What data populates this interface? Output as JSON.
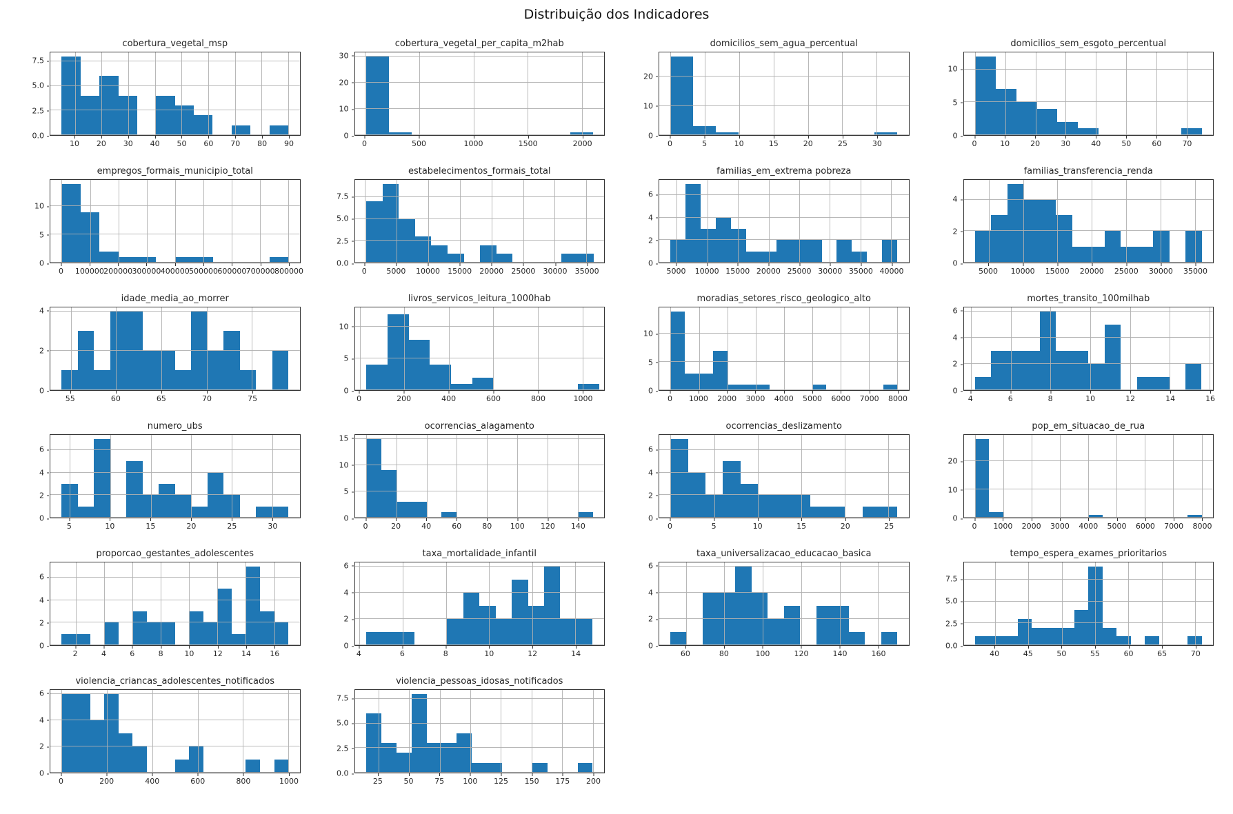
{
  "figure": {
    "title": "Distribuição dos Indicadores"
  },
  "colors": {
    "bar": "#1f77b4",
    "grid": "#b0b0b0",
    "spine": "#333333",
    "text": "#262626"
  },
  "chart_data": [
    {
      "type": "histogram",
      "title": "cobertura_vegetal_msp",
      "bin_start": 5,
      "bin_width": 7.08,
      "counts": [
        8,
        4,
        6,
        4,
        0,
        4,
        3,
        2,
        0,
        1,
        0,
        1
      ],
      "x_axis": {
        "min": 0.75,
        "max": 94.25,
        "tick_values": [
          10,
          20,
          30,
          40,
          50,
          60,
          70,
          80,
          90
        ],
        "tick_labels": [
          "10",
          "20",
          "30",
          "40",
          "50",
          "60",
          "70",
          "80",
          "90"
        ]
      },
      "y_axis": {
        "max": 8.4,
        "tick_values": [
          0,
          2.5,
          5,
          7.5
        ],
        "tick_labels": [
          "0.0",
          "2.5",
          "5.0",
          "7.5"
        ]
      }
    },
    {
      "type": "histogram",
      "title": "cobertura_vegetal_per_capita_m2hab",
      "bin_start": 10,
      "bin_width": 209,
      "counts": [
        30,
        1,
        0,
        0,
        0,
        0,
        0,
        0,
        0,
        1
      ],
      "x_axis": {
        "min": -94.5,
        "max": 2204.5,
        "tick_values": [
          0,
          500,
          1000,
          1500,
          2000
        ],
        "tick_labels": [
          "0",
          "500",
          "1000",
          "1500",
          "2000"
        ]
      },
      "y_axis": {
        "max": 31.5,
        "tick_values": [
          0,
          10,
          20,
          30
        ],
        "tick_labels": [
          "0",
          "10",
          "20",
          "30"
        ]
      }
    },
    {
      "type": "histogram",
      "title": "domicilios_sem_agua_percentual",
      "bin_start": 0,
      "bin_width": 3.3,
      "counts": [
        27,
        3,
        1,
        0,
        0,
        0,
        0,
        0,
        0,
        1
      ],
      "x_axis": {
        "min": -1.65,
        "max": 34.65,
        "tick_values": [
          0,
          5,
          10,
          15,
          20,
          25,
          30
        ],
        "tick_labels": [
          "0",
          "5",
          "10",
          "15",
          "20",
          "25",
          "30"
        ]
      },
      "y_axis": {
        "max": 28.35,
        "tick_values": [
          0,
          10,
          20
        ],
        "tick_labels": [
          "0",
          "10",
          "20"
        ]
      }
    },
    {
      "type": "histogram",
      "title": "domicilios_sem_esgoto_percentual",
      "bin_start": 0,
      "bin_width": 6.82,
      "counts": [
        12,
        7,
        5,
        4,
        2,
        1,
        0,
        0,
        0,
        0,
        1
      ],
      "x_axis": {
        "min": -3.75,
        "max": 78.75,
        "tick_values": [
          0,
          10,
          20,
          30,
          40,
          50,
          60,
          70
        ],
        "tick_labels": [
          "0",
          "10",
          "20",
          "30",
          "40",
          "50",
          "60",
          "70"
        ]
      },
      "y_axis": {
        "max": 12.6,
        "tick_values": [
          0,
          5,
          10
        ],
        "tick_labels": [
          "0",
          "5",
          "10"
        ]
      }
    },
    {
      "type": "histogram",
      "title": "empregos_formais_municipio_total",
      "bin_start": 0,
      "bin_width": 66667,
      "counts": [
        14,
        9,
        2,
        1,
        1,
        0,
        1,
        1,
        0,
        0,
        0,
        1
      ],
      "x_axis": {
        "min": -40000,
        "max": 840000,
        "tick_values": [
          0,
          100000,
          200000,
          300000,
          400000,
          500000,
          600000,
          700000,
          800000
        ],
        "tick_labels": [
          "0",
          "100000",
          "200000",
          "300000",
          "400000",
          "500000",
          "600000",
          "700000",
          "800000"
        ]
      },
      "y_axis": {
        "max": 14.7,
        "tick_values": [
          0,
          5,
          10
        ],
        "tick_labels": [
          "0",
          "5",
          "10"
        ]
      }
    },
    {
      "type": "histogram",
      "title": "estabelecimentos_formais_total",
      "bin_start": 200,
      "bin_width": 2571,
      "counts": [
        7,
        9,
        5,
        3,
        2,
        1,
        0,
        2,
        1,
        0,
        0,
        0,
        1,
        1
      ],
      "x_axis": {
        "min": -1600,
        "max": 37800,
        "tick_values": [
          0,
          5000,
          10000,
          15000,
          20000,
          25000,
          30000,
          35000
        ],
        "tick_labels": [
          "0",
          "5000",
          "10000",
          "15000",
          "20000",
          "25000",
          "30000",
          "35000"
        ]
      },
      "y_axis": {
        "max": 9.45,
        "tick_values": [
          0,
          2.5,
          5,
          7.5
        ],
        "tick_labels": [
          "0.0",
          "2.5",
          "5.0",
          "7.5"
        ]
      }
    },
    {
      "type": "histogram",
      "title": "familias_em_extrema pobreza",
      "bin_start": 4000,
      "bin_width": 2467,
      "counts": [
        2,
        7,
        3,
        4,
        3,
        1,
        1,
        2,
        2,
        2,
        0,
        2,
        1,
        0,
        2
      ],
      "x_axis": {
        "min": 2150,
        "max": 42850,
        "tick_values": [
          5000,
          10000,
          15000,
          20000,
          25000,
          30000,
          35000,
          40000
        ],
        "tick_labels": [
          "5000",
          "10000",
          "15000",
          "20000",
          "25000",
          "30000",
          "35000",
          "40000"
        ]
      },
      "y_axis": {
        "max": 7.35,
        "tick_values": [
          0,
          2,
          4,
          6
        ],
        "tick_labels": [
          "0",
          "2",
          "4",
          "6"
        ]
      }
    },
    {
      "type": "histogram",
      "title": "familias_transferencia_renda",
      "bin_start": 3000,
      "bin_width": 2357,
      "counts": [
        2,
        3,
        5,
        4,
        4,
        3,
        1,
        1,
        2,
        1,
        1,
        2,
        0,
        2
      ],
      "x_axis": {
        "min": 1350,
        "max": 37650,
        "tick_values": [
          5000,
          10000,
          15000,
          20000,
          25000,
          30000,
          35000
        ],
        "tick_labels": [
          "5000",
          "10000",
          "15000",
          "20000",
          "25000",
          "30000",
          "35000"
        ]
      },
      "y_axis": {
        "max": 5.25,
        "tick_values": [
          0,
          2,
          4
        ],
        "tick_labels": [
          "0",
          "2",
          "4"
        ]
      }
    },
    {
      "type": "histogram",
      "title": "idade_media_ao_morrer",
      "bin_start": 54,
      "bin_width": 1.786,
      "counts": [
        1,
        3,
        1,
        4,
        4,
        2,
        2,
        1,
        4,
        2,
        3,
        1,
        0,
        2
      ],
      "x_axis": {
        "min": 52.75,
        "max": 80.25,
        "tick_values": [
          55,
          60,
          65,
          70,
          75
        ],
        "tick_labels": [
          "55",
          "60",
          "65",
          "70",
          "75"
        ]
      },
      "y_axis": {
        "max": 4.2,
        "tick_values": [
          0,
          2,
          4
        ],
        "tick_labels": [
          "0",
          "2",
          "4"
        ]
      }
    },
    {
      "type": "histogram",
      "title": "livros_servicos_leitura_1000hab",
      "bin_start": 30,
      "bin_width": 95,
      "counts": [
        4,
        12,
        8,
        4,
        1,
        2,
        0,
        0,
        0,
        0,
        1
      ],
      "x_axis": {
        "min": -22,
        "max": 1097,
        "tick_values": [
          0,
          200,
          400,
          600,
          800,
          1000
        ],
        "tick_labels": [
          "0",
          "200",
          "400",
          "600",
          "800",
          "1000"
        ]
      },
      "y_axis": {
        "max": 13.1,
        "tick_values": [
          0,
          5,
          10
        ],
        "tick_labels": [
          "0",
          "5",
          "10"
        ]
      }
    },
    {
      "type": "histogram",
      "title": "moradias_setores_risco_geologico_alto",
      "bin_start": 0,
      "bin_width": 500,
      "counts": [
        14,
        3,
        3,
        7,
        1,
        1,
        1,
        0,
        0,
        0,
        1,
        0,
        0,
        0,
        0,
        1
      ],
      "x_axis": {
        "min": -400,
        "max": 8400,
        "tick_values": [
          0,
          1000,
          2000,
          3000,
          4000,
          5000,
          6000,
          7000,
          8000
        ],
        "tick_labels": [
          "0",
          "1000",
          "2000",
          "3000",
          "4000",
          "5000",
          "6000",
          "7000",
          "8000"
        ]
      },
      "y_axis": {
        "max": 14.7,
        "tick_values": [
          0,
          5,
          10
        ],
        "tick_labels": [
          "0",
          "5",
          "10"
        ]
      }
    },
    {
      "type": "histogram",
      "title": "mortes_transito_100milhab",
      "bin_start": 4.2,
      "bin_width": 0.814,
      "counts": [
        1,
        3,
        3,
        3,
        6,
        3,
        3,
        2,
        5,
        0,
        1,
        1,
        0,
        2
      ],
      "x_axis": {
        "min": 3.63,
        "max": 16.17,
        "tick_values": [
          4,
          6,
          8,
          10,
          12,
          14,
          16
        ],
        "tick_labels": [
          "4",
          "6",
          "8",
          "10",
          "12",
          "14",
          "16"
        ]
      },
      "y_axis": {
        "max": 6.3,
        "tick_values": [
          0,
          2,
          4,
          6
        ],
        "tick_labels": [
          "0",
          "2",
          "4",
          "6"
        ]
      }
    },
    {
      "type": "histogram",
      "title": "numero_ubs",
      "bin_start": 4,
      "bin_width": 2,
      "counts": [
        3,
        1,
        7,
        0,
        5,
        2,
        3,
        2,
        1,
        4,
        2,
        0,
        1,
        1
      ],
      "x_axis": {
        "min": 2.6,
        "max": 33.4,
        "tick_values": [
          5,
          10,
          15,
          20,
          25,
          30
        ],
        "tick_labels": [
          "5",
          "10",
          "15",
          "20",
          "25",
          "30"
        ]
      },
      "y_axis": {
        "max": 7.35,
        "tick_values": [
          0,
          2,
          4,
          6
        ],
        "tick_labels": [
          "0",
          "2",
          "4",
          "6"
        ]
      }
    },
    {
      "type": "histogram",
      "title": "ocorrencias_alagamento",
      "bin_start": 0,
      "bin_width": 10,
      "counts": [
        15,
        9,
        3,
        3,
        0,
        1,
        0,
        0,
        0,
        0,
        0,
        0,
        0,
        0,
        1
      ],
      "x_axis": {
        "min": -7.5,
        "max": 157.5,
        "tick_values": [
          0,
          20,
          40,
          60,
          80,
          100,
          120,
          140
        ],
        "tick_labels": [
          "0",
          "20",
          "40",
          "60",
          "80",
          "100",
          "120",
          "140"
        ]
      },
      "y_axis": {
        "max": 15.75,
        "tick_values": [
          0,
          5,
          10,
          15
        ],
        "tick_labels": [
          "0",
          "5",
          "10",
          "15"
        ]
      }
    },
    {
      "type": "histogram",
      "title": "ocorrencias_deslizamento",
      "bin_start": 0,
      "bin_width": 2,
      "counts": [
        7,
        4,
        2,
        5,
        3,
        2,
        2,
        2,
        1,
        1,
        0,
        1,
        1
      ],
      "x_axis": {
        "min": -1.3,
        "max": 27.3,
        "tick_values": [
          0,
          5,
          10,
          15,
          20,
          25
        ],
        "tick_labels": [
          "0",
          "5",
          "10",
          "15",
          "20",
          "25"
        ]
      },
      "y_axis": {
        "max": 7.35,
        "tick_values": [
          0,
          2,
          4,
          6
        ],
        "tick_labels": [
          "0",
          "2",
          "4",
          "6"
        ]
      }
    },
    {
      "type": "histogram",
      "title": "pop_em_situacao_de_rua",
      "bin_start": 0,
      "bin_width": 500,
      "counts": [
        28,
        2,
        0,
        0,
        0,
        0,
        0,
        0,
        1,
        0,
        0,
        0,
        0,
        0,
        0,
        1
      ],
      "x_axis": {
        "min": -400,
        "max": 8400,
        "tick_values": [
          0,
          1000,
          2000,
          3000,
          4000,
          5000,
          6000,
          7000,
          8000
        ],
        "tick_labels": [
          "0",
          "1000",
          "2000",
          "3000",
          "4000",
          "5000",
          "6000",
          "7000",
          "8000"
        ]
      },
      "y_axis": {
        "max": 29.4,
        "tick_values": [
          0,
          10,
          20
        ],
        "tick_labels": [
          "0",
          "10",
          "20"
        ]
      }
    },
    {
      "type": "histogram",
      "title": "proporcao_gestantes_adolescentes",
      "bin_start": 1,
      "bin_width": 1,
      "counts": [
        1,
        1,
        0,
        2,
        0,
        3,
        2,
        2,
        0,
        3,
        2,
        5,
        1,
        7,
        3,
        2
      ],
      "x_axis": {
        "min": 0.2,
        "max": 17.8,
        "tick_values": [
          2,
          4,
          6,
          8,
          10,
          12,
          14,
          16
        ],
        "tick_labels": [
          "2",
          "4",
          "6",
          "8",
          "10",
          "12",
          "14",
          "16"
        ]
      },
      "y_axis": {
        "max": 7.35,
        "tick_values": [
          0,
          2,
          4,
          6
        ],
        "tick_labels": [
          "0",
          "2",
          "4",
          "6"
        ]
      }
    },
    {
      "type": "histogram",
      "title": "taxa_mortalidade_infantil",
      "bin_start": 4.3,
      "bin_width": 0.75,
      "counts": [
        1,
        1,
        1,
        0,
        0,
        2,
        4,
        3,
        2,
        5,
        3,
        6,
        2,
        2
      ],
      "x_axis": {
        "min": 3.78,
        "max": 15.33,
        "tick_values": [
          4,
          6,
          8,
          10,
          12,
          14
        ],
        "tick_labels": [
          "4",
          "6",
          "8",
          "10",
          "12",
          "14"
        ]
      },
      "y_axis": {
        "max": 6.3,
        "tick_values": [
          0,
          2,
          4,
          6
        ],
        "tick_labels": [
          "0",
          "2",
          "4",
          "6"
        ]
      }
    },
    {
      "type": "histogram",
      "title": "taxa_universalizacao_educacao_basica",
      "bin_start": 52,
      "bin_width": 8.43,
      "counts": [
        1,
        0,
        4,
        4,
        6,
        4,
        2,
        3,
        0,
        3,
        3,
        1,
        0,
        1
      ],
      "x_axis": {
        "min": 46.1,
        "max": 175.9,
        "tick_values": [
          60,
          80,
          100,
          120,
          140,
          160
        ],
        "tick_labels": [
          "60",
          "80",
          "100",
          "120",
          "140",
          "160"
        ]
      },
      "y_axis": {
        "max": 6.3,
        "tick_values": [
          0,
          2,
          4,
          6
        ],
        "tick_labels": [
          "0",
          "2",
          "4",
          "6"
        ]
      }
    },
    {
      "type": "histogram",
      "title": "tempo_espera_exames_prioritarios",
      "bin_start": 37,
      "bin_width": 2.125,
      "counts": [
        1,
        1,
        1,
        3,
        2,
        2,
        2,
        4,
        9,
        2,
        1,
        0,
        1,
        0,
        0,
        1
      ],
      "x_axis": {
        "min": 35.3,
        "max": 72.7,
        "tick_values": [
          40,
          45,
          50,
          55,
          60,
          65,
          70
        ],
        "tick_labels": [
          "40",
          "45",
          "50",
          "55",
          "60",
          "65",
          "70"
        ]
      },
      "y_axis": {
        "max": 9.45,
        "tick_values": [
          0,
          2.5,
          5,
          7.5
        ],
        "tick_labels": [
          "0.0",
          "2.5",
          "5.0",
          "7.5"
        ]
      }
    },
    {
      "type": "histogram",
      "title": "violencia_criancas_adolescentes_notificados",
      "bin_start": 0,
      "bin_width": 62.5,
      "counts": [
        6,
        6,
        4,
        6,
        3,
        2,
        0,
        0,
        1,
        2,
        0,
        0,
        0,
        1,
        0,
        1
      ],
      "x_axis": {
        "min": -50,
        "max": 1050,
        "tick_values": [
          0,
          200,
          400,
          600,
          800,
          1000
        ],
        "tick_labels": [
          "0",
          "200",
          "400",
          "600",
          "800",
          "1000"
        ]
      },
      "y_axis": {
        "max": 6.3,
        "tick_values": [
          0,
          2,
          4,
          6
        ],
        "tick_labels": [
          "0",
          "2",
          "4",
          "6"
        ]
      }
    },
    {
      "type": "histogram",
      "title": "violencia_pessoas_idosas_notificados",
      "bin_start": 15,
      "bin_width": 12.33,
      "counts": [
        6,
        3,
        2,
        8,
        3,
        3,
        4,
        1,
        1,
        0,
        0,
        1,
        0,
        0,
        1
      ],
      "x_axis": {
        "min": 5.75,
        "max": 209.25,
        "tick_values": [
          25,
          50,
          75,
          100,
          125,
          150,
          175,
          200
        ],
        "tick_labels": [
          "25",
          "50",
          "75",
          "100",
          "125",
          "150",
          "175",
          "200"
        ]
      },
      "y_axis": {
        "max": 8.4,
        "tick_values": [
          0,
          2.5,
          5,
          7.5
        ],
        "tick_labels": [
          "0.0",
          "2.5",
          "5.0",
          "7.5"
        ]
      }
    }
  ]
}
